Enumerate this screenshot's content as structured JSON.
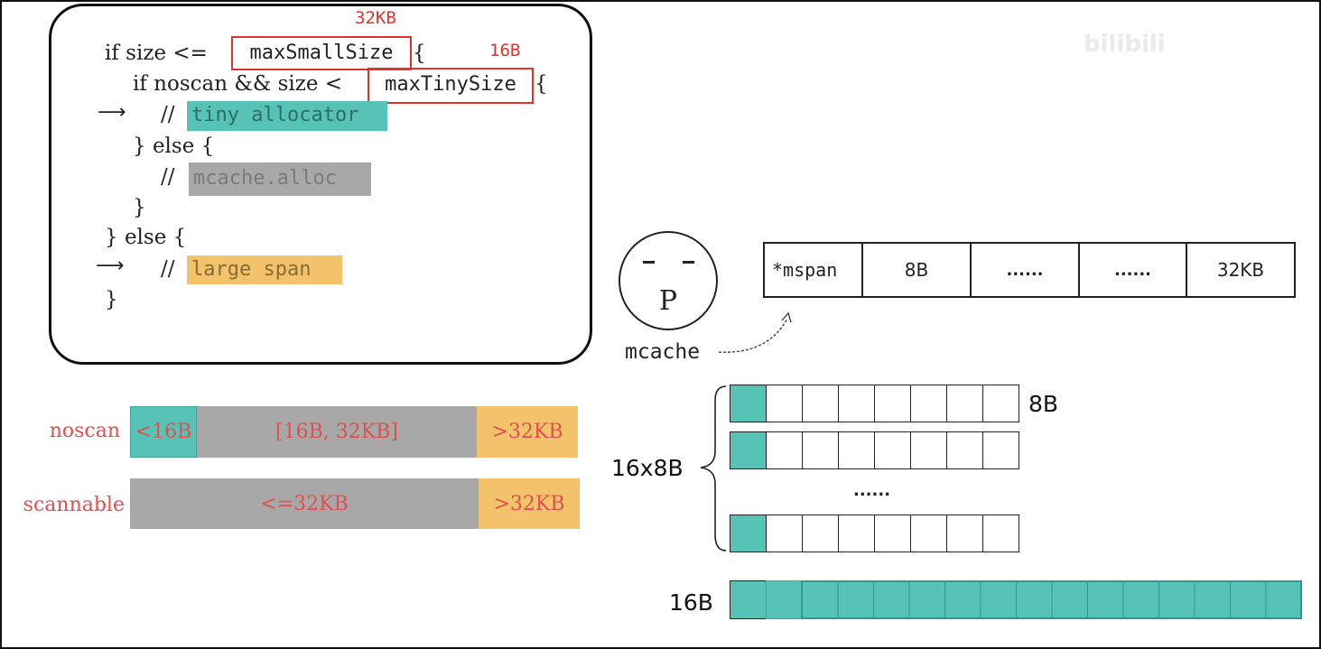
{
  "code": {
    "line1_prefix": "if size <=",
    "line1_box": "maxSmallSize",
    "line1_suffix": "{",
    "line1_annotation": "32KB",
    "line2_prefix": "if noscan && size <",
    "line2_box": "maxTinySize",
    "line2_suffix": "{",
    "line2_annotation": "16B",
    "line3_prefix": "//",
    "line3_highlight": "tiny allocator",
    "line4": "} else {",
    "line5_prefix": "//",
    "line5_highlight": "mcache.alloc",
    "line6": "}",
    "line7": "} else {",
    "line8_prefix": "//",
    "line8_highlight": "large span",
    "line9": "}"
  },
  "ranges": {
    "noscan": {
      "label": "noscan",
      "segments": [
        "<16B",
        "[16B, 32KB]",
        ">32KB"
      ]
    },
    "scannable": {
      "label": "scannable",
      "segments": [
        "<=32KB",
        ">32KB"
      ]
    }
  },
  "mcache": {
    "face_letter": "P",
    "label": "mcache",
    "table_cells": [
      "*mspan",
      "8B",
      "......",
      "......",
      "32KB"
    ]
  },
  "span_diagram": {
    "row_label_8b": "8B",
    "group_label": "16x8B",
    "dots": "......",
    "row_label_16b": "16B"
  },
  "watermark": "bilibili",
  "colors": {
    "teal": "#57c2b6",
    "gray": "#a8a8a8",
    "orange": "#f2c36b",
    "red": "#e0332b"
  }
}
